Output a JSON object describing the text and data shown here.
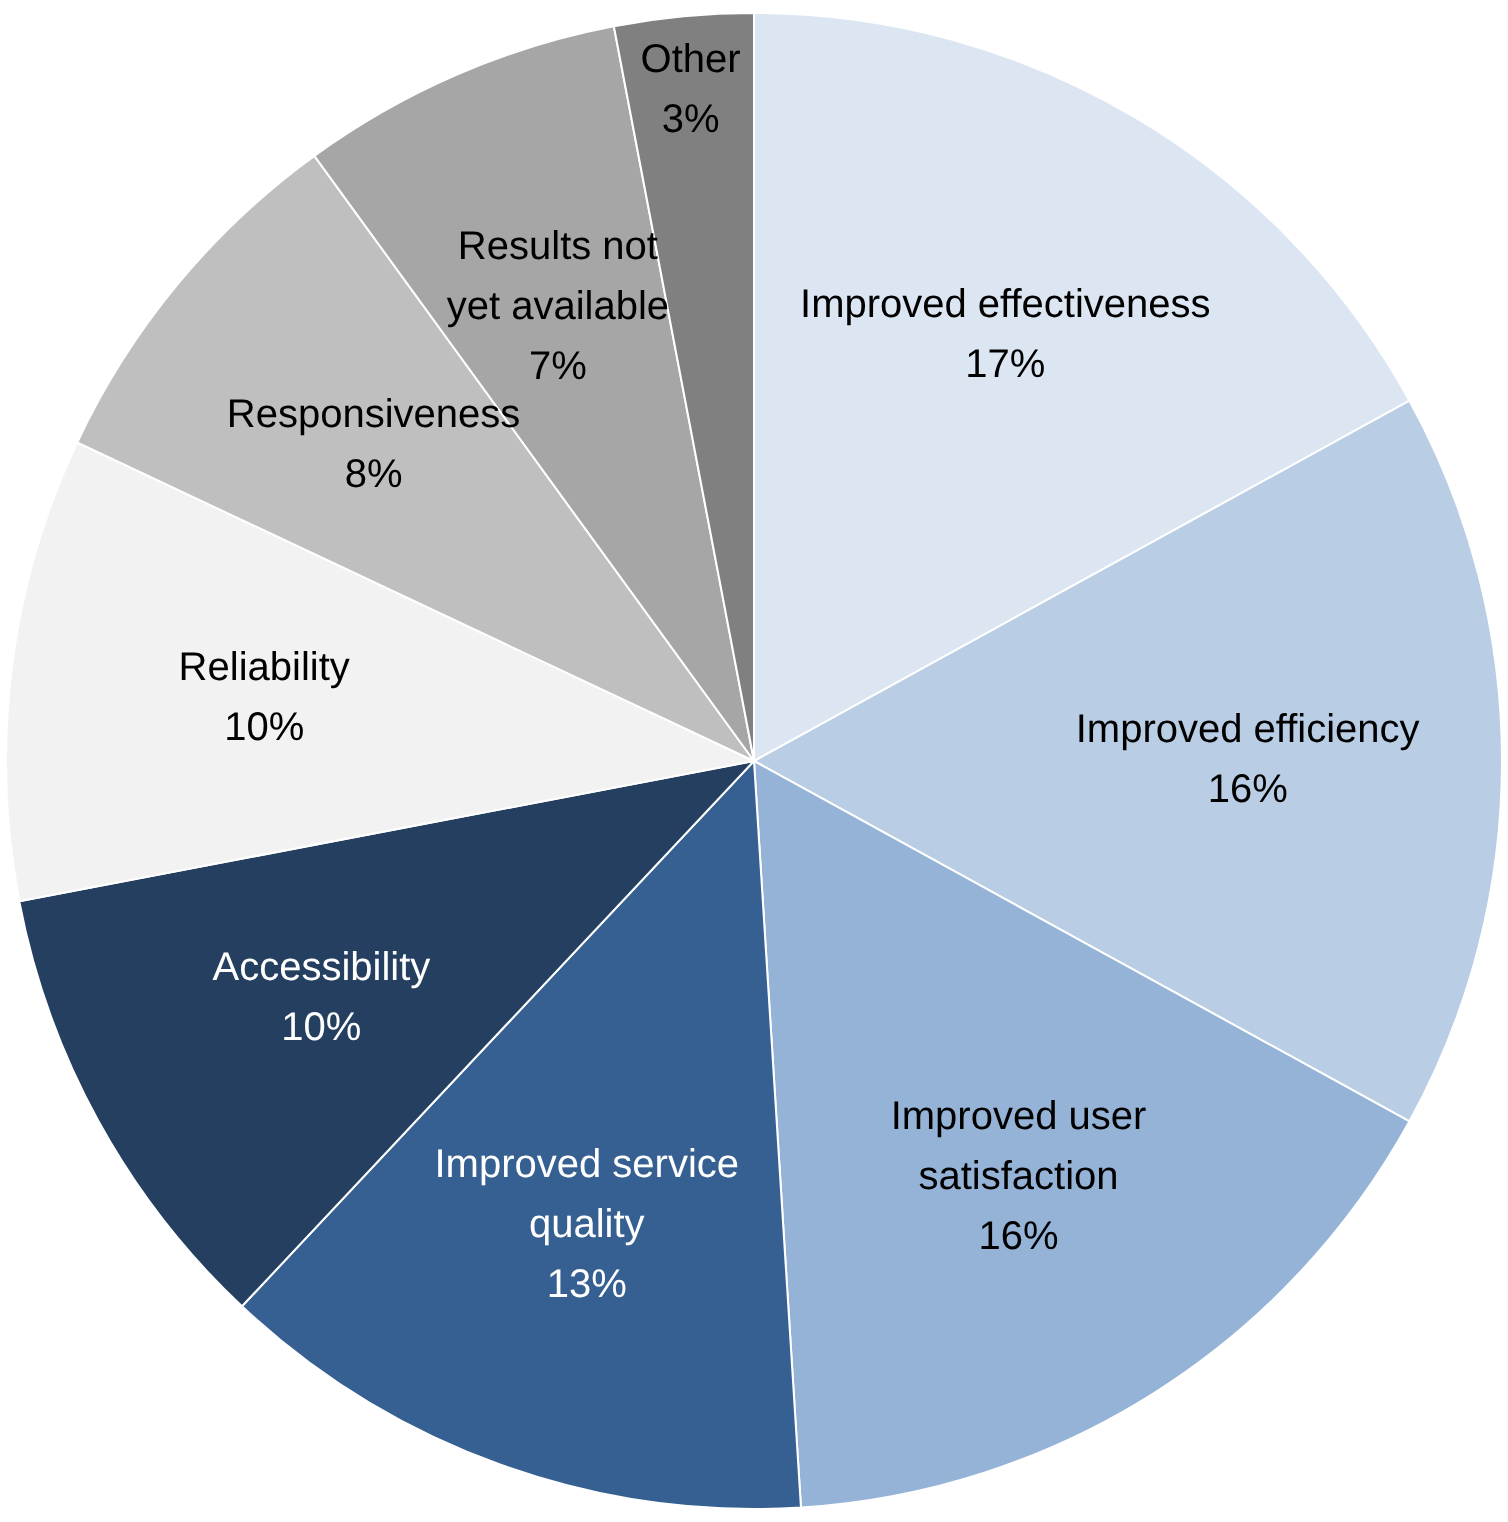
{
  "chart_data": {
    "type": "pie",
    "categories": [
      "Improved effectiveness",
      "Improved efficiency",
      "Improved user\nsatisfaction",
      "Improved service\nquality",
      "Accessibility",
      "Reliability",
      "Responsiveness",
      "Results not\nyet available",
      "Other"
    ],
    "values": [
      17,
      16,
      16,
      13,
      10,
      10,
      8,
      7,
      3
    ],
    "colors": [
      "#dce6f2",
      "#b9cde5",
      "#95b3d7",
      "#376092",
      "#243f60",
      "#f2f2f2",
      "#bfbfbf",
      "#a6a6a6",
      "#808080"
    ],
    "value_labels": [
      "17%",
      "16%",
      "16%",
      "13%",
      "10%",
      "10%",
      "8%",
      "7%",
      "3%"
    ],
    "legend": false
  }
}
